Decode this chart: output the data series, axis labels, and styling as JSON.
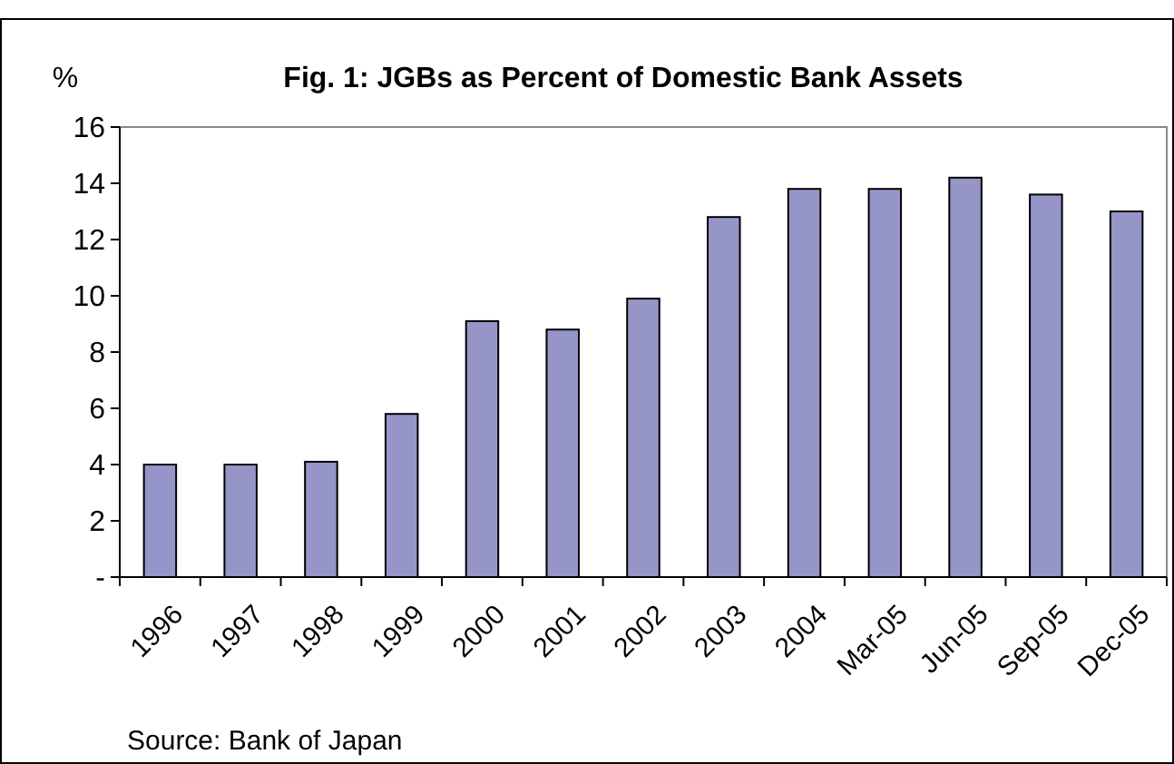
{
  "chart_data": {
    "type": "bar",
    "title": "Fig. 1: JGBs as Percent of Domestic Bank Assets",
    "ylabel": "%",
    "categories": [
      "1996",
      "1997",
      "1998",
      "1999",
      "2000",
      "2001",
      "2002",
      "2003",
      "2004",
      "Mar-05",
      "Jun-05",
      "Sep-05",
      "Dec-05"
    ],
    "values": [
      4.0,
      4.0,
      4.1,
      5.8,
      9.1,
      8.8,
      9.9,
      12.8,
      13.8,
      13.8,
      14.2,
      13.6,
      13.0
    ],
    "color": "#9595c8",
    "ylim": [
      0,
      16
    ],
    "yticks": [
      {
        "value": 0,
        "label": "-"
      },
      2,
      4,
      6,
      8,
      10,
      12,
      14,
      16
    ],
    "grid": false,
    "annotations": [
      "Source: Bank of Japan"
    ]
  }
}
